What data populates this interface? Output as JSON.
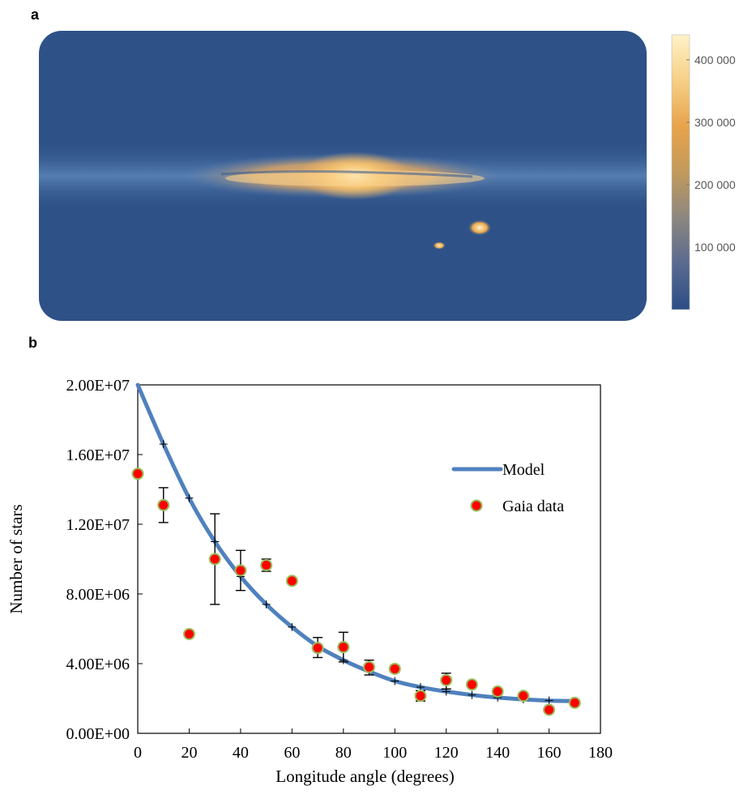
{
  "panel_a": {
    "letter": "a",
    "colorbar": {
      "ticks": [
        {
          "value": 400000,
          "label": "400 000"
        },
        {
          "value": 300000,
          "label": "300 000"
        },
        {
          "value": 200000,
          "label": "200 000"
        },
        {
          "value": 100000,
          "label": "100 000"
        }
      ],
      "range": [
        0,
        440000
      ],
      "colors": [
        "#2b4d86",
        "#5a6a90",
        "#8c8780",
        "#c29a5c",
        "#e8a34b",
        "#f6cf85",
        "#fff2c8"
      ]
    },
    "map_colors": {
      "background": "#2e5288",
      "band": "#4a74aa",
      "bright": "#f0b35a",
      "core": "#fff0c0"
    }
  },
  "panel_b": {
    "letter": "b",
    "chart_data": {
      "type": "scatter",
      "xlabel": "Longitude angle (degrees)",
      "ylabel": "Number of stars",
      "xlim": [
        0,
        180
      ],
      "ylim": [
        0,
        20000000
      ],
      "x_ticks": [
        0,
        20,
        40,
        60,
        80,
        100,
        120,
        140,
        160,
        180
      ],
      "x_tick_labels": [
        "0",
        "20",
        "40",
        "60",
        "80",
        "100",
        "120",
        "140",
        "160",
        "180"
      ],
      "y_ticks": [
        0,
        4000000,
        8000000,
        12000000,
        16000000,
        20000000
      ],
      "y_tick_labels": [
        "0.00E+00",
        "4.00E+06",
        "8.00E+06",
        "1.20E+07",
        "1.60E+07",
        "2.00E+07"
      ],
      "legend_position": "right",
      "series": [
        {
          "name": "Model",
          "kind": "line",
          "color": "#4f81bd",
          "x": [
            0,
            10,
            20,
            30,
            40,
            50,
            60,
            70,
            80,
            90,
            100,
            110,
            120,
            130,
            140,
            150,
            160,
            170
          ],
          "y": [
            20000000,
            16600000,
            13500000,
            11000000,
            9000000,
            7400000,
            6100000,
            5000000,
            4200000,
            3550000,
            3000000,
            2650000,
            2400000,
            2200000,
            2050000,
            1950000,
            1880000,
            1850000
          ]
        },
        {
          "name": "Gaia data",
          "kind": "scatter",
          "color": "#ff0000",
          "edge_color": "#9bbb59",
          "x": [
            0,
            10,
            20,
            30,
            40,
            50,
            60,
            70,
            80,
            90,
            100,
            110,
            120,
            130,
            140,
            150,
            160,
            170
          ],
          "y": [
            14900000,
            13100000,
            5700000,
            10000000,
            9350000,
            9650000,
            8750000,
            4900000,
            4950000,
            3800000,
            3700000,
            2150000,
            3050000,
            2800000,
            2400000,
            2150000,
            1350000,
            1750000
          ],
          "error_low": [
            14900000,
            12100000,
            5700000,
            7400000,
            8200000,
            9300000,
            8750000,
            4350000,
            4100000,
            3350000,
            3500000,
            1850000,
            2550000,
            2800000,
            2400000,
            2150000,
            1350000,
            1750000
          ],
          "error_high": [
            14900000,
            14100000,
            5700000,
            12600000,
            10500000,
            10000000,
            8750000,
            5500000,
            5800000,
            4200000,
            3900000,
            2450000,
            3450000,
            2800000,
            2400000,
            2150000,
            1350000,
            1750000
          ]
        }
      ]
    }
  }
}
